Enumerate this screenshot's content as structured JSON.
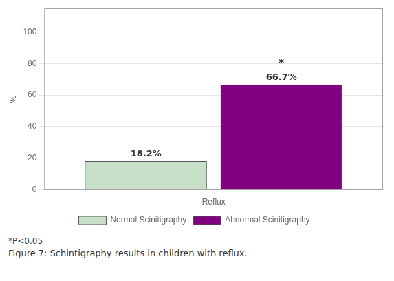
{
  "chart_data": {
    "type": "bar",
    "categories": [
      "Reflux"
    ],
    "series": [
      {
        "name": "Normal Scinitigraphy",
        "color": "#c8dfc8",
        "values": [
          18.2
        ],
        "value_labels": [
          "18.2%"
        ]
      },
      {
        "name": "Abnormal Scinitigraphy",
        "color": "#800080",
        "values": [
          66.7
        ],
        "value_labels": [
          "66.7%"
        ]
      }
    ],
    "ylabel": "%",
    "ylim": [
      0,
      115
    ],
    "yticks": [
      0,
      20,
      40,
      60,
      80,
      100
    ],
    "grid": true,
    "data_labels": true,
    "legend": "bottom",
    "annotations": [
      {
        "text": "*",
        "series": "Abnormal Scinitigraphy",
        "category": "Reflux"
      },
      {
        "text": "*P<0.05"
      }
    ],
    "caption": "Figure 7: Schintigraphy results in children with reflux."
  }
}
